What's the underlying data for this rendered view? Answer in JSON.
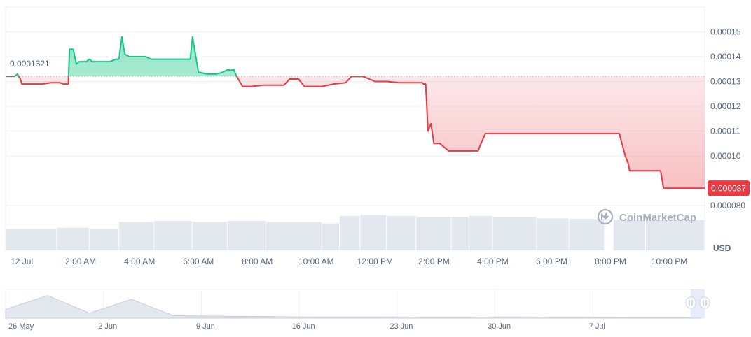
{
  "chart_data": {
    "type": "line",
    "currency_label": "USD",
    "baseline_value": 0.0001321,
    "baseline_label": "0.0001321",
    "current_price_label": "0.000087",
    "watermark": "CoinMarketCap",
    "ylim": [
      7.55e-05,
      0.00016
    ],
    "y_ticks": [
      {
        "value": 0.00015,
        "label": "0.00015"
      },
      {
        "value": 0.00014,
        "label": "0.00014"
      },
      {
        "value": 0.00013,
        "label": "0.00013"
      },
      {
        "value": 0.00012,
        "label": "0.00012"
      },
      {
        "value": 0.00011,
        "label": "0.00011"
      },
      {
        "value": 0.0001,
        "label": "0.00010"
      },
      {
        "value": 8e-05,
        "label": "0.000080"
      }
    ],
    "x_ticks": [
      "12 Jul",
      "2:00 AM",
      "4:00 AM",
      "6:00 AM",
      "8:00 AM",
      "10:00 AM",
      "12:00 PM",
      "2:00 PM",
      "4:00 PM",
      "6:00 PM",
      "8:00 PM",
      "10:00 PM"
    ],
    "x_unit": "hours since 12 Jul 00:00",
    "x_range": [
      -0.55,
      23.2
    ],
    "series": [
      {
        "x": [
          -0.55,
          -0.25,
          -0.15,
          -0.05,
          0.0,
          0.1,
          0.3,
          0.7,
          1.0,
          1.1,
          1.3,
          1.4,
          1.5,
          1.58,
          1.62,
          1.75,
          1.85,
          1.95,
          2.2,
          2.3,
          2.4,
          2.8,
          3.0,
          3.2,
          3.3,
          3.4,
          3.5,
          3.65,
          3.75,
          4.0,
          4.2,
          4.4,
          4.6,
          4.8,
          5.0,
          5.5,
          5.72,
          5.8,
          6.0,
          6.3,
          6.6,
          6.8,
          7.0,
          7.1,
          7.2,
          7.3,
          7.5,
          7.8,
          8.2,
          8.5,
          8.7,
          8.9,
          9.1,
          9.2,
          9.4,
          9.6,
          9.9,
          10.2,
          10.6,
          11.0,
          11.2,
          11.6,
          12.0,
          12.4,
          12.8,
          13.3,
          13.5,
          13.6,
          13.65,
          13.72,
          13.8,
          13.9,
          14.0,
          14.2,
          14.5,
          15.0,
          15.5,
          15.6,
          15.75,
          15.85,
          16.1,
          16.5,
          17.0,
          17.7,
          18.5,
          19.3,
          19.7,
          19.8,
          20.3,
          20.5,
          20.6,
          20.65,
          20.8,
          21.0,
          21.5,
          21.7,
          21.8,
          22.0,
          22.4,
          22.6,
          23.2
        ],
        "y": [
          0.0001321,
          0.0001321,
          0.000133,
          0.000131,
          0.000129,
          0.000129,
          0.000129,
          0.000129,
          0.0001295,
          0.0001295,
          0.0001295,
          0.000129,
          0.000129,
          0.000129,
          0.000143,
          0.000143,
          0.000137,
          0.000138,
          0.000138,
          0.000139,
          0.000138,
          0.000138,
          0.000138,
          0.000139,
          0.000139,
          0.000148,
          0.000141,
          0.00014,
          0.00014,
          0.00014,
          0.00014,
          0.000139,
          0.000139,
          0.000139,
          0.000139,
          0.000139,
          0.000139,
          0.000148,
          0.0001338,
          0.000133,
          0.000133,
          0.0001336,
          0.0001348,
          0.0001345,
          0.0001348,
          0.000132,
          0.000128,
          0.000128,
          0.0001285,
          0.0001285,
          0.0001285,
          0.0001285,
          0.000131,
          0.000131,
          0.000131,
          0.000128,
          0.000128,
          0.000128,
          0.000129,
          0.0001295,
          0.000132,
          0.000132,
          0.00013,
          0.00013,
          0.0001295,
          0.0001295,
          0.0001295,
          0.0001295,
          0.000129,
          0.000129,
          0.00011,
          0.000113,
          0.000105,
          0.000105,
          0.000102,
          0.000102,
          0.000102,
          0.000105,
          0.000109,
          0.000109,
          0.000109,
          0.000109,
          0.000109,
          0.000109,
          0.000109,
          0.000109,
          0.000109,
          0.000109,
          0.000109,
          0.0001,
          9.7e-05,
          9.4e-05,
          9.4e-05,
          9.4e-05,
          9.4e-05,
          9.4e-05,
          8.7e-05,
          8.7e-05,
          8.7e-05,
          8.7e-05,
          8.7e-05
        ]
      }
    ],
    "volume": {
      "x": [
        -0.55,
        1.2,
        2.3,
        3.3,
        4.5,
        5.8,
        7.0,
        8.3,
        10.2,
        10.8,
        11.5,
        12.4,
        13.4,
        14.6,
        15.2,
        16.0,
        17.5,
        18.6,
        19.8,
        20.1,
        21.2,
        23.2
      ],
      "rel": [
        0.44,
        0.46,
        0.44,
        0.58,
        0.6,
        0.58,
        0.6,
        0.58,
        0.55,
        0.7,
        0.72,
        0.7,
        0.68,
        0.68,
        0.7,
        0.68,
        0.65,
        0.64,
        0.0,
        0.62,
        0.62,
        0.62
      ]
    },
    "navigator": {
      "x_ticks": [
        "26 May",
        "2 Jun",
        "9 Jun",
        "16 Jun",
        "23 Jun",
        "30 Jun",
        "7 Jul"
      ],
      "days": [
        0,
        3,
        6,
        9,
        12,
        15,
        18,
        21,
        24,
        27,
        30,
        33,
        36,
        39,
        42,
        45,
        48,
        49.7
      ],
      "profile": [
        0.35,
        0.9,
        0.2,
        0.75,
        0.1,
        0.08,
        0.07,
        0.05,
        0.05,
        0.05,
        0.04,
        0.04,
        0.05,
        0.04,
        0.04,
        0.03,
        0.03,
        0.03
      ]
    }
  }
}
